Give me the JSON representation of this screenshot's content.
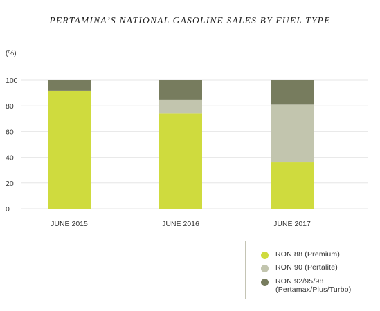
{
  "chart_data": {
    "type": "bar",
    "stacked": true,
    "title": "PERTAMINA’S NATIONAL GASOLINE SALES BY FUEL TYPE",
    "ylabel": "(%)",
    "xlabel": "",
    "ylim": [
      0,
      100
    ],
    "yticks": [
      0,
      20,
      40,
      60,
      80,
      100
    ],
    "grid": true,
    "legend_position": "bottom-right",
    "categories": [
      "JUNE 2015",
      "JUNE 2016",
      "JUNE 2017"
    ],
    "series": [
      {
        "name": "RON 88 (Premium)",
        "color": "#cfdb3e",
        "values": [
          92,
          74,
          36
        ]
      },
      {
        "name": "RON 90 (Pertalite)",
        "color": "#c2c5ae",
        "values": [
          0,
          11,
          45
        ]
      },
      {
        "name": "RON 92/95/98\n(Pertamax/Plus/Turbo)",
        "color": "#777c5e",
        "values": [
          8,
          15,
          19
        ]
      }
    ]
  }
}
